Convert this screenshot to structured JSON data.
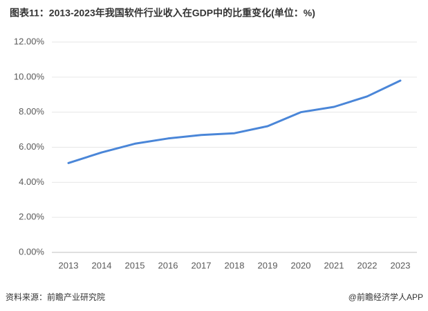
{
  "chart_data": {
    "type": "line",
    "title": "图表11：2013-2023年我国软件行业收入在GDP中的比重变化(单位：%)",
    "categories": [
      "2013",
      "2014",
      "2015",
      "2016",
      "2017",
      "2018",
      "2019",
      "2020",
      "2021",
      "2022",
      "2023"
    ],
    "values": [
      5.1,
      5.7,
      6.2,
      6.5,
      6.7,
      6.8,
      7.2,
      8.0,
      8.3,
      8.9,
      9.8
    ],
    "color": "#4a86d8",
    "ylim": [
      0,
      12
    ],
    "yticks": [
      {
        "value": 0,
        "label": "0.00%"
      },
      {
        "value": 2,
        "label": "2.00%"
      },
      {
        "value": 4,
        "label": "4.00%"
      },
      {
        "value": 6,
        "label": "6.00%"
      },
      {
        "value": 8,
        "label": "8.00%"
      },
      {
        "value": 10,
        "label": "10.00%"
      },
      {
        "value": 12,
        "label": "12.00%"
      }
    ],
    "grid": true,
    "source": "资料来源：前瞻产业研究院",
    "credit": "@前瞻经济学人APP"
  }
}
